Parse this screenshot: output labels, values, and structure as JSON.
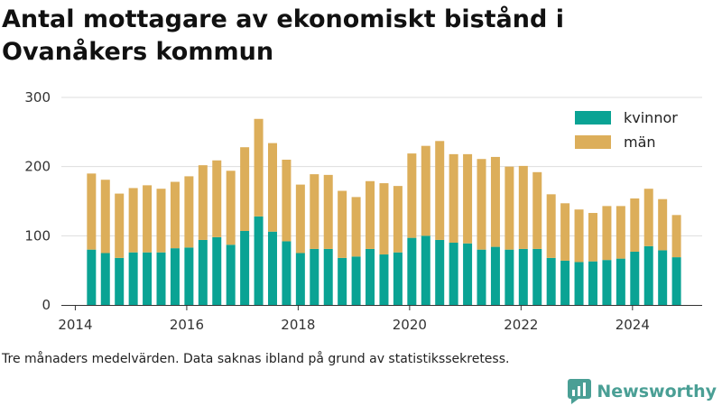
{
  "title": "Antal mottagare av ekonomiskt bistånd i Ovanåkers kommun",
  "footnote": "Tre månaders medelvärden. Data saknas ibland på grund av statistikssekretess.",
  "brand": {
    "name": "Newsworthy",
    "icon": "newsworthy-logo-icon",
    "color": "#4a9f95"
  },
  "colors": {
    "kvinnor": "#0aa394",
    "man": "#dcae5a",
    "grid": "#dddddd"
  },
  "chart_data": {
    "type": "bar",
    "stacked": true,
    "title": "Antal mottagare av ekonomiskt bistånd i Ovanåkers kommun",
    "xlabel": "",
    "ylabel": "",
    "ylim": [
      0,
      300
    ],
    "yticks": [
      "0",
      "100",
      "200",
      "300"
    ],
    "xticks": [
      "2014",
      "2016",
      "2018",
      "2020",
      "2022",
      "2024"
    ],
    "xlim": [
      2013.75,
      2025.25
    ],
    "grid": true,
    "legend_position": "top-right",
    "x": [
      2014.29,
      2014.54,
      2014.79,
      2015.04,
      2015.29,
      2015.54,
      2015.79,
      2016.04,
      2016.29,
      2016.54,
      2016.79,
      2017.04,
      2017.29,
      2017.54,
      2017.79,
      2018.04,
      2018.29,
      2018.54,
      2018.79,
      2019.04,
      2019.29,
      2019.54,
      2019.79,
      2020.04,
      2020.29,
      2020.54,
      2020.79,
      2021.04,
      2021.29,
      2021.54,
      2021.79,
      2022.04,
      2022.29,
      2022.54,
      2022.79,
      2023.04,
      2023.29,
      2023.54,
      2023.79,
      2024.04,
      2024.29,
      2024.54,
      2024.79
    ],
    "series": [
      {
        "name": "kvinnor",
        "color": "#0aa394",
        "values": [
          80,
          75,
          68,
          76,
          76,
          76,
          82,
          83,
          94,
          98,
          87,
          107,
          128,
          106,
          92,
          75,
          81,
          81,
          68,
          70,
          81,
          73,
          76,
          97,
          100,
          94,
          90,
          89,
          80,
          84,
          80,
          81,
          81,
          68,
          64,
          62,
          63,
          65,
          67,
          77,
          85,
          79,
          69
        ]
      },
      {
        "name": "män",
        "color": "#dcae5a",
        "values": [
          110,
          106,
          93,
          93,
          97,
          92,
          96,
          103,
          108,
          111,
          107,
          121,
          141,
          128,
          118,
          99,
          108,
          107,
          97,
          86,
          98,
          103,
          96,
          122,
          130,
          143,
          128,
          129,
          131,
          130,
          120,
          120,
          111,
          92,
          83,
          76,
          70,
          78,
          76,
          77,
          83,
          74,
          61
        ]
      }
    ]
  }
}
